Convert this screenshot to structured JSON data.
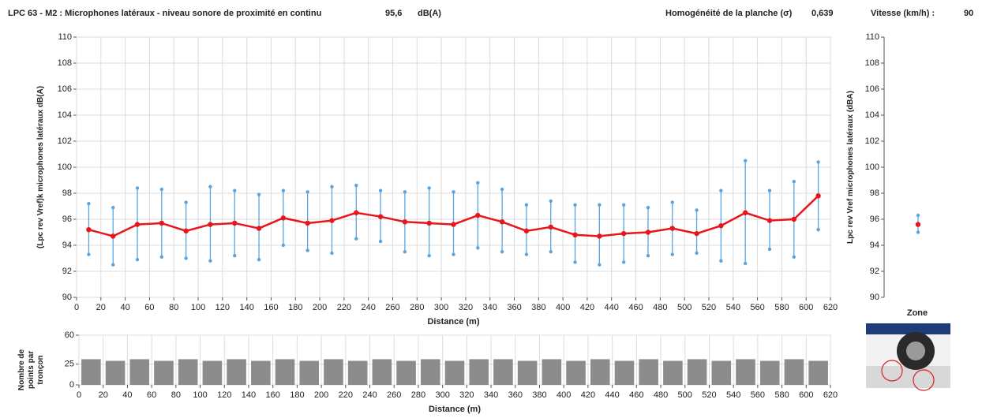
{
  "header": {
    "title": "LPC 63 - M2 : Microphones latéraux - niveau sonore de proximité en continu",
    "value": "95,6",
    "unit": "dB(A)",
    "homog_label": "Homogénéité de la planche (σ)",
    "homog_value": "0,639",
    "speed_label": "Vitesse (km/h) :",
    "speed_value": "90"
  },
  "zone": {
    "label": "Zone"
  },
  "chart_data": [
    {
      "type": "errorline",
      "x_label": "Distance (m)",
      "y_label": "(Lpc rev Vref)k microphones latéraux dB(A)",
      "x": [
        10,
        30,
        50,
        70,
        90,
        110,
        130,
        150,
        170,
        190,
        210,
        230,
        250,
        270,
        290,
        310,
        330,
        350,
        370,
        390,
        410,
        430,
        450,
        470,
        490,
        510,
        530,
        550,
        570,
        590,
        610
      ],
      "xlim": [
        0,
        620
      ],
      "xticks": [
        0,
        20,
        40,
        60,
        80,
        100,
        120,
        140,
        160,
        180,
        200,
        220,
        240,
        260,
        280,
        300,
        320,
        340,
        360,
        380,
        400,
        420,
        440,
        460,
        480,
        500,
        520,
        540,
        560,
        580,
        600,
        620
      ],
      "ylim": [
        90,
        110
      ],
      "yticks": [
        90,
        92,
        94,
        96,
        98,
        100,
        102,
        104,
        106,
        108,
        110
      ],
      "grid": true,
      "series": [
        {
          "color": "#e8161b",
          "whisker_color": "#5aa5e0",
          "values": [
            95.2,
            94.7,
            95.6,
            95.7,
            95.1,
            95.6,
            95.7,
            95.3,
            96.1,
            95.7,
            95.9,
            96.5,
            96.2,
            95.8,
            95.7,
            95.6,
            96.3,
            95.8,
            95.1,
            95.4,
            94.8,
            94.7,
            94.9,
            95.0,
            95.3,
            94.9,
            95.5,
            96.5,
            95.9,
            96.0,
            97.8
          ],
          "low": [
            93.3,
            92.5,
            92.9,
            93.1,
            93.0,
            92.8,
            93.2,
            92.9,
            94.0,
            93.6,
            93.4,
            94.5,
            94.3,
            93.5,
            93.2,
            93.3,
            93.8,
            93.5,
            93.3,
            93.5,
            92.7,
            92.5,
            92.7,
            93.2,
            93.3,
            93.4,
            92.8,
            92.6,
            93.7,
            93.1,
            95.2
          ],
          "high": [
            97.2,
            96.9,
            98.4,
            98.3,
            97.3,
            98.5,
            98.2,
            97.9,
            98.2,
            98.1,
            98.5,
            98.6,
            98.2,
            98.1,
            98.4,
            98.1,
            98.8,
            98.3,
            97.1,
            97.4,
            97.1,
            97.1,
            97.1,
            96.9,
            97.3,
            96.7,
            98.2,
            100.5,
            98.2,
            98.9,
            100.4
          ]
        }
      ]
    },
    {
      "type": "errorpoint",
      "y_label": "Lpc rev Vref microphones latéraux (dBA)",
      "ylim": [
        90,
        110
      ],
      "yticks": [
        90,
        92,
        94,
        96,
        98,
        100,
        102,
        104,
        106,
        108,
        110
      ],
      "grid": false,
      "series": [
        {
          "color": "#e8161b",
          "whisker_color": "#5aa5e0",
          "values": [
            95.6
          ],
          "low": [
            95.0
          ],
          "high": [
            96.3
          ]
        }
      ]
    },
    {
      "type": "bar",
      "x_label": "Distance (m)",
      "y_label": "Nombre de points par tronçon",
      "color": "#8c8c8c",
      "x": [
        10,
        30,
        50,
        70,
        90,
        110,
        130,
        150,
        170,
        190,
        210,
        230,
        250,
        270,
        290,
        310,
        330,
        350,
        370,
        390,
        410,
        430,
        450,
        470,
        490,
        510,
        530,
        550,
        570,
        590,
        610
      ],
      "values": [
        31,
        29,
        31,
        29,
        31,
        29,
        31,
        29,
        31,
        29,
        31,
        29,
        31,
        29,
        31,
        29,
        31,
        31,
        29,
        31,
        29,
        31,
        29,
        31,
        29,
        31,
        29,
        31,
        29,
        31,
        29
      ],
      "xlim": [
        0,
        620
      ],
      "xticks": [
        0,
        20,
        40,
        60,
        80,
        100,
        120,
        140,
        160,
        180,
        200,
        220,
        240,
        260,
        280,
        300,
        320,
        340,
        360,
        380,
        400,
        420,
        440,
        460,
        480,
        500,
        520,
        540,
        560,
        580,
        600,
        620
      ],
      "ylim": [
        0,
        60
      ],
      "yticks": [
        0,
        25,
        60
      ],
      "grid": true
    }
  ]
}
